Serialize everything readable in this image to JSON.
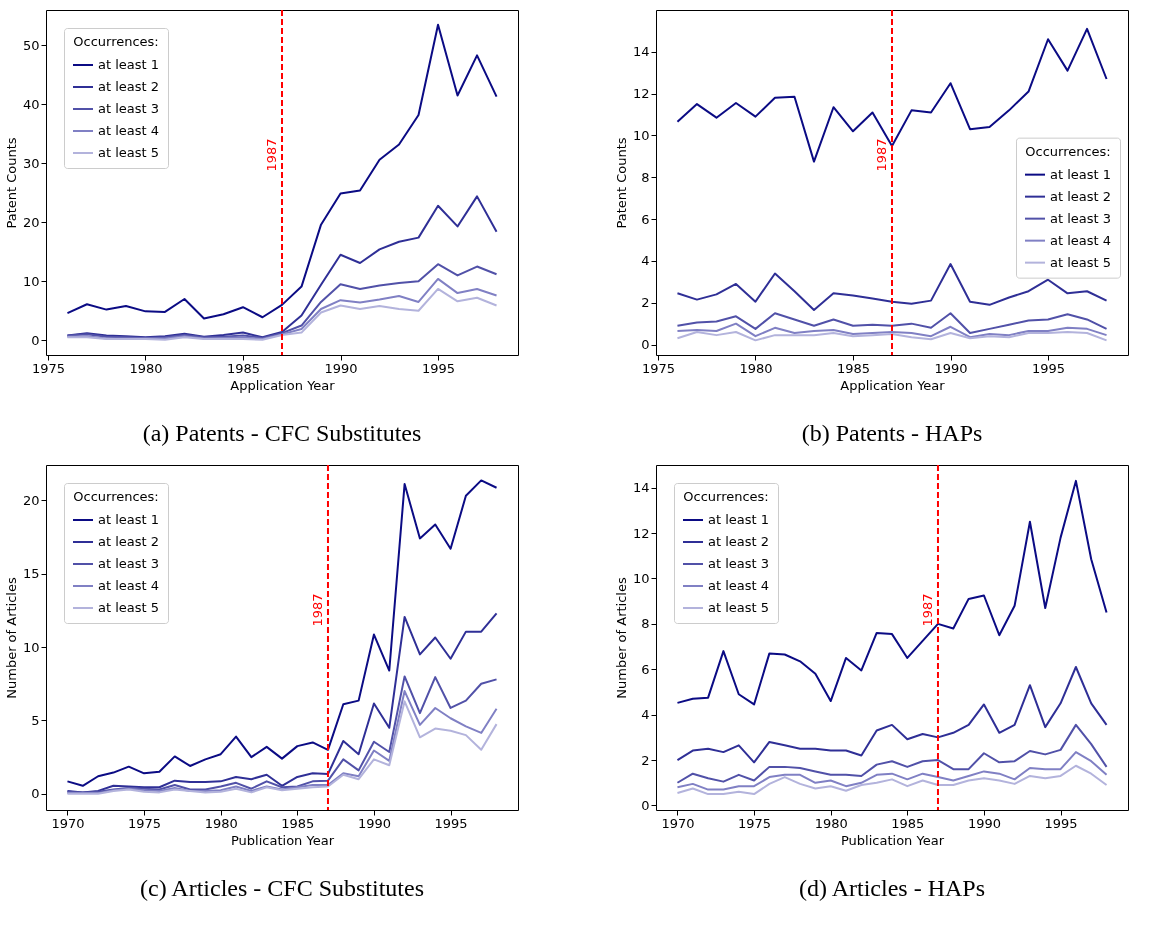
{
  "chart_data": [
    {
      "type": "line",
      "title": "(a) Patents - CFC Substitutes",
      "xlabel": "Application Year",
      "ylabel": "Patent Counts",
      "legend_title": "Occurrences:",
      "legend": "top left",
      "grid": false,
      "x": [
        1976,
        1977,
        1978,
        1979,
        1980,
        1981,
        1982,
        1983,
        1984,
        1985,
        1986,
        1987,
        1988,
        1989,
        1990,
        1991,
        1992,
        1993,
        1994,
        1995,
        1996,
        1997,
        1998
      ],
      "xlim": [
        1974.9,
        1999.1
      ],
      "xticks": [
        1975,
        1980,
        1985,
        1990,
        1995
      ],
      "ylim": [
        -2.5,
        56
      ],
      "yticks": [
        0,
        10,
        20,
        30,
        40,
        50
      ],
      "ref_lines": [
        {
          "axis": "x",
          "value": 1987,
          "label": "1987",
          "color": "#ff0000",
          "line_style": "dashed"
        }
      ],
      "series": [
        {
          "name": "at least 1",
          "color": "#0b0b84",
          "values": [
            4.6,
            6.1,
            5.2,
            5.8,
            4.9,
            4.8,
            7.0,
            3.7,
            4.4,
            5.6,
            3.9,
            6.0,
            9.1,
            19.6,
            24.9,
            25.4,
            30.6,
            33.2,
            38.2,
            53.5,
            41.5,
            48.3,
            41.3
          ]
        },
        {
          "name": "at least 2",
          "color": "#2f2f96",
          "values": [
            0.8,
            1.2,
            0.8,
            0.7,
            0.5,
            0.7,
            1.1,
            0.6,
            0.9,
            1.3,
            0.5,
            1.4,
            4.2,
            9.4,
            14.5,
            13.1,
            15.4,
            16.7,
            17.4,
            22.8,
            19.3,
            24.4,
            18.4
          ]
        },
        {
          "name": "at least 3",
          "color": "#5151a8",
          "values": [
            0.8,
            1.0,
            0.6,
            0.5,
            0.4,
            0.5,
            0.9,
            0.5,
            0.6,
            0.8,
            0.4,
            1.2,
            2.5,
            6.5,
            9.5,
            8.7,
            9.3,
            9.7,
            10.0,
            12.9,
            11.0,
            12.5,
            11.2
          ]
        },
        {
          "name": "at least 4",
          "color": "#8080c4",
          "values": [
            0.6,
            0.7,
            0.3,
            0.3,
            0.3,
            0.3,
            0.7,
            0.3,
            0.4,
            0.5,
            0.2,
            1.0,
            1.9,
            5.3,
            6.8,
            6.4,
            6.9,
            7.5,
            6.5,
            10.4,
            8.0,
            8.7,
            7.6
          ]
        },
        {
          "name": "at least 5",
          "color": "#b3b3dc",
          "values": [
            0.5,
            0.5,
            0.2,
            0.2,
            0.2,
            0.1,
            0.5,
            0.2,
            0.2,
            0.2,
            0.1,
            0.9,
            1.3,
            4.7,
            5.9,
            5.3,
            5.8,
            5.3,
            5.0,
            8.7,
            6.6,
            7.2,
            5.9
          ]
        }
      ]
    },
    {
      "type": "line",
      "title": "(b) Patents - HAPs",
      "xlabel": "Application Year",
      "ylabel": "Patent Counts",
      "legend_title": "Occurrences:",
      "legend": "right",
      "grid": false,
      "x": [
        1976,
        1977,
        1978,
        1979,
        1980,
        1981,
        1982,
        1983,
        1984,
        1985,
        1986,
        1987,
        1988,
        1989,
        1990,
        1991,
        1992,
        1993,
        1994,
        1995,
        1996,
        1997,
        1998
      ],
      "xlim": [
        1974.9,
        1999.1
      ],
      "xticks": [
        1975,
        1980,
        1985,
        1990,
        1995
      ],
      "ylim": [
        -0.5,
        16
      ],
      "yticks": [
        0,
        2,
        4,
        6,
        8,
        10,
        12,
        14
      ],
      "ref_lines": [
        {
          "axis": "x",
          "value": 1987,
          "label": "1987",
          "color": "#ff0000",
          "line_style": "dashed"
        }
      ],
      "series": [
        {
          "name": "at least 1",
          "color": "#0b0b84",
          "values": [
            10.65,
            11.5,
            10.85,
            11.55,
            10.9,
            11.8,
            11.85,
            8.75,
            11.35,
            10.2,
            11.1,
            9.5,
            11.2,
            11.1,
            12.5,
            10.3,
            10.4,
            11.2,
            12.1,
            14.6,
            13.1,
            15.1,
            12.7
          ]
        },
        {
          "name": "at least 2",
          "color": "#2f2f96",
          "values": [
            2.45,
            2.15,
            2.4,
            2.9,
            2.05,
            3.4,
            2.55,
            1.65,
            2.45,
            2.35,
            2.2,
            2.05,
            1.95,
            2.1,
            3.85,
            2.05,
            1.9,
            2.25,
            2.55,
            3.1,
            2.45,
            2.55,
            2.1
          ]
        },
        {
          "name": "at least 3",
          "color": "#5151a8",
          "values": [
            0.9,
            1.05,
            1.1,
            1.35,
            0.75,
            1.5,
            1.2,
            0.9,
            1.2,
            0.9,
            0.95,
            0.9,
            1.0,
            0.8,
            1.5,
            0.55,
            0.75,
            0.95,
            1.15,
            1.2,
            1.45,
            1.2,
            0.75
          ]
        },
        {
          "name": "at least 4",
          "color": "#8080c4",
          "values": [
            0.65,
            0.7,
            0.65,
            1.0,
            0.4,
            0.8,
            0.55,
            0.65,
            0.7,
            0.5,
            0.55,
            0.6,
            0.55,
            0.4,
            0.85,
            0.35,
            0.5,
            0.45,
            0.65,
            0.65,
            0.8,
            0.75,
            0.45
          ]
        },
        {
          "name": "at least 5",
          "color": "#b3b3dc",
          "values": [
            0.3,
            0.6,
            0.45,
            0.6,
            0.2,
            0.45,
            0.45,
            0.45,
            0.55,
            0.4,
            0.45,
            0.5,
            0.35,
            0.25,
            0.55,
            0.3,
            0.4,
            0.35,
            0.55,
            0.55,
            0.6,
            0.55,
            0.2
          ]
        }
      ]
    },
    {
      "type": "line",
      "title": "(c) Articles - CFC Substitutes",
      "xlabel": "Publication Year",
      "ylabel": "Number of Articles",
      "legend_title": "Occurrences:",
      "legend": "top left",
      "grid": false,
      "x": [
        1970,
        1971,
        1972,
        1973,
        1974,
        1975,
        1976,
        1977,
        1978,
        1979,
        1980,
        1981,
        1982,
        1983,
        1984,
        1985,
        1986,
        1987,
        1988,
        1989,
        1990,
        1991,
        1992,
        1993,
        1994,
        1995,
        1996,
        1997,
        1998
      ],
      "xlim": [
        1968.6,
        1999.4
      ],
      "xticks": [
        1970,
        1975,
        1980,
        1985,
        1990,
        1995
      ],
      "ylim": [
        -1.1,
        22.4
      ],
      "yticks": [
        0,
        5,
        10,
        15,
        20
      ],
      "ref_lines": [
        {
          "axis": "x",
          "value": 1987,
          "label": "1987",
          "color": "#ff0000",
          "line_style": "dashed"
        }
      ],
      "series": [
        {
          "name": "at least 1",
          "color": "#0b0b84",
          "values": [
            0.85,
            0.55,
            1.2,
            1.45,
            1.85,
            1.4,
            1.5,
            2.55,
            1.9,
            2.35,
            2.7,
            3.9,
            2.5,
            3.2,
            2.4,
            3.25,
            3.5,
            3.0,
            6.1,
            6.35,
            10.85,
            8.4,
            21.1,
            17.4,
            18.35,
            16.7,
            20.3,
            21.35,
            20.85
          ]
        },
        {
          "name": "at least 2",
          "color": "#2f2f96",
          "values": [
            0.2,
            0.1,
            0.2,
            0.55,
            0.5,
            0.45,
            0.45,
            0.9,
            0.8,
            0.8,
            0.85,
            1.15,
            1.0,
            1.3,
            0.55,
            1.15,
            1.4,
            1.35,
            3.6,
            2.7,
            6.15,
            4.5,
            12.05,
            9.5,
            10.65,
            9.2,
            11.05,
            11.05,
            12.3
          ]
        },
        {
          "name": "at least 3",
          "color": "#5151a8",
          "values": [
            0.15,
            0.1,
            0.15,
            0.3,
            0.4,
            0.35,
            0.3,
            0.6,
            0.3,
            0.3,
            0.5,
            0.75,
            0.35,
            0.85,
            0.45,
            0.5,
            0.85,
            0.9,
            2.35,
            1.6,
            3.55,
            2.85,
            8.0,
            5.5,
            7.95,
            5.85,
            6.35,
            7.5,
            7.8
          ]
        },
        {
          "name": "at least 4",
          "color": "#8080c4",
          "values": [
            0.05,
            0.05,
            0.05,
            0.25,
            0.35,
            0.25,
            0.2,
            0.4,
            0.2,
            0.2,
            0.25,
            0.5,
            0.2,
            0.5,
            0.3,
            0.45,
            0.6,
            0.6,
            1.4,
            1.2,
            2.95,
            2.25,
            7.0,
            4.7,
            5.85,
            5.15,
            4.6,
            4.15,
            5.8
          ]
        },
        {
          "name": "at least 5",
          "color": "#b3b3dc",
          "values": [
            0,
            0,
            0,
            0.2,
            0.3,
            0.15,
            0.1,
            0.3,
            0.2,
            0.1,
            0.15,
            0.35,
            0.1,
            0.45,
            0.25,
            0.35,
            0.45,
            0.5,
            1.3,
            1.0,
            2.35,
            1.95,
            6.3,
            3.85,
            4.45,
            4.3,
            4.0,
            3.0,
            4.75
          ]
        }
      ]
    },
    {
      "type": "line",
      "title": "(d) Articles - HAPs",
      "xlabel": "Publication Year",
      "ylabel": "Number of Articles",
      "legend_title": "Occurrences:",
      "legend": "top left",
      "grid": false,
      "x": [
        1970,
        1971,
        1972,
        1973,
        1974,
        1975,
        1976,
        1977,
        1978,
        1979,
        1980,
        1981,
        1982,
        1983,
        1984,
        1985,
        1986,
        1987,
        1988,
        1989,
        1990,
        1991,
        1992,
        1993,
        1994,
        1995,
        1996,
        1997,
        1998
      ],
      "xlim": [
        1968.6,
        1999.4
      ],
      "xticks": [
        1970,
        1975,
        1980,
        1985,
        1990,
        1995
      ],
      "ylim": [
        -0.2,
        15
      ],
      "yticks": [
        0,
        2,
        4,
        6,
        8,
        10,
        12,
        14
      ],
      "ref_lines": [
        {
          "axis": "x",
          "value": 1987,
          "label": "1987",
          "color": "#ff0000",
          "line_style": "dashed"
        }
      ],
      "series": [
        {
          "name": "at least 1",
          "color": "#0b0b84",
          "values": [
            4.52,
            4.7,
            4.75,
            6.8,
            4.9,
            4.45,
            6.7,
            6.65,
            6.35,
            5.8,
            4.6,
            6.5,
            5.95,
            7.6,
            7.55,
            6.5,
            7.25,
            8.0,
            7.8,
            9.1,
            9.25,
            7.5,
            8.8,
            12.5,
            8.7,
            11.8,
            14.3,
            10.85,
            8.5
          ]
        },
        {
          "name": "at least 2",
          "color": "#2f2f96",
          "values": [
            2.0,
            2.42,
            2.5,
            2.35,
            2.65,
            1.9,
            2.8,
            2.65,
            2.5,
            2.5,
            2.42,
            2.42,
            2.2,
            3.3,
            3.55,
            2.92,
            3.15,
            3.0,
            3.2,
            3.55,
            4.45,
            3.2,
            3.55,
            5.3,
            3.45,
            4.5,
            6.1,
            4.5,
            3.55
          ]
        },
        {
          "name": "at least 3",
          "color": "#5151a8",
          "values": [
            1.0,
            1.4,
            1.2,
            1.05,
            1.35,
            1.1,
            1.7,
            1.7,
            1.65,
            1.5,
            1.35,
            1.35,
            1.3,
            1.8,
            1.95,
            1.7,
            1.95,
            2.0,
            1.6,
            1.6,
            2.3,
            1.9,
            1.95,
            2.4,
            2.25,
            2.45,
            3.55,
            2.7,
            1.7
          ]
        },
        {
          "name": "at least 4",
          "color": "#8080c4",
          "values": [
            0.8,
            0.95,
            0.7,
            0.7,
            0.85,
            0.85,
            1.25,
            1.35,
            1.35,
            1.0,
            1.1,
            0.85,
            1.0,
            1.35,
            1.4,
            1.15,
            1.4,
            1.25,
            1.1,
            1.3,
            1.5,
            1.4,
            1.15,
            1.65,
            1.6,
            1.6,
            2.35,
            1.95,
            1.35
          ]
        },
        {
          "name": "at least 5",
          "color": "#b3b3dc",
          "values": [
            0.55,
            0.75,
            0.5,
            0.5,
            0.6,
            0.5,
            0.95,
            1.25,
            0.95,
            0.75,
            0.85,
            0.65,
            0.9,
            1.0,
            1.15,
            0.85,
            1.1,
            0.9,
            0.9,
            1.1,
            1.2,
            1.1,
            0.95,
            1.3,
            1.2,
            1.3,
            1.75,
            1.4,
            0.9
          ]
        }
      ]
    }
  ]
}
